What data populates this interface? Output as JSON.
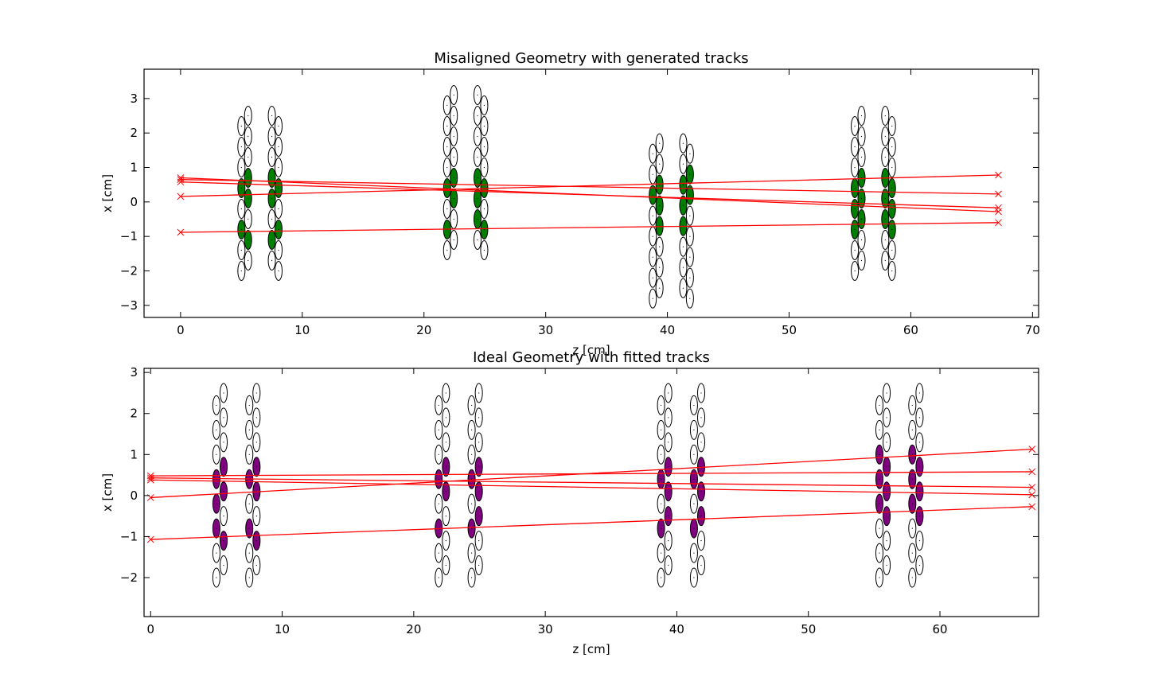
{
  "chart_data": [
    {
      "type": "scatter",
      "title": "Misaligned Geometry with generated tracks",
      "xlabel": "z [cm]",
      "ylabel": "x [cm]",
      "xlim": [
        -3,
        70.5
      ],
      "ylim": [
        -3.35,
        3.85
      ],
      "xticks": [
        0,
        10,
        20,
        30,
        40,
        50,
        60,
        70
      ],
      "yticks": [
        -3,
        -2,
        -1,
        0,
        1,
        2,
        3
      ],
      "grid": false,
      "colors": {
        "hit_module": "#008000",
        "empty_module": "#ffffff",
        "track": "#ff0000"
      },
      "layers": [
        {
          "z_front": 5.0,
          "z_back": 5.55,
          "x": [
            -2.0,
            -1.4,
            -0.8,
            -0.2,
            0.4,
            1.0,
            1.6,
            2.2
          ],
          "offset": 0.3
        },
        {
          "z_front": 7.5,
          "z_back": 8.05,
          "x": [
            -1.7,
            -1.1,
            -0.5,
            0.1,
            0.7,
            1.3,
            1.9,
            2.5
          ],
          "offset": -0.3
        },
        {
          "z_front": 21.9,
          "z_back": 22.45,
          "x": [
            -1.4,
            -0.8,
            -0.2,
            0.4,
            1.0,
            1.6,
            2.2,
            2.8
          ],
          "offset": 0.3
        },
        {
          "z_front": 24.4,
          "z_back": 24.95,
          "x": [
            -1.1,
            -0.5,
            0.1,
            0.7,
            1.3,
            1.9,
            2.5,
            3.1
          ],
          "offset": -0.3
        },
        {
          "z_front": 38.8,
          "z_back": 39.35,
          "x": [
            -2.8,
            -2.2,
            -1.6,
            -1.0,
            -0.4,
            0.2,
            0.8,
            1.4
          ],
          "offset": 0.3
        },
        {
          "z_front": 41.3,
          "z_back": 41.85,
          "x": [
            -2.5,
            -1.9,
            -1.3,
            -0.7,
            -0.1,
            0.5,
            1.1,
            1.7
          ],
          "offset": -0.3
        },
        {
          "z_front": 55.4,
          "z_back": 55.95,
          "x": [
            -2.0,
            -1.4,
            -0.8,
            -0.2,
            0.4,
            1.0,
            1.6,
            2.2
          ],
          "offset": 0.3
        },
        {
          "z_front": 57.9,
          "z_back": 58.45,
          "x": [
            -1.7,
            -1.1,
            -0.5,
            0.1,
            0.7,
            1.3,
            1.9,
            2.5
          ],
          "offset": -0.3
        }
      ],
      "tracks": [
        {
          "x0": 0.7,
          "x1": -0.28
        },
        {
          "x0": 0.65,
          "x1": 0.23
        },
        {
          "x0": 0.58,
          "x1": -0.17
        },
        {
          "x0": 0.16,
          "x1": 0.78
        },
        {
          "x0": -0.88,
          "x1": -0.6
        }
      ],
      "track_z": [
        0,
        67.2
      ]
    },
    {
      "type": "scatter",
      "title": "Ideal Geometry with fitted tracks",
      "xlabel": "z [cm]",
      "ylabel": "x [cm]",
      "xlim": [
        -0.5,
        67.5
      ],
      "ylim": [
        -2.95,
        3.1
      ],
      "xticks": [
        0,
        10,
        20,
        30,
        40,
        50,
        60
      ],
      "yticks": [
        -2,
        -1,
        0,
        1,
        2,
        3
      ],
      "grid": false,
      "colors": {
        "hit_module": "#800080",
        "empty_module": "#ffffff",
        "track": "#ff0000"
      },
      "layers": [
        {
          "z_front": 5.0,
          "z_back": 5.55,
          "x": [
            -2.0,
            -1.4,
            -0.8,
            -0.2,
            0.4,
            1.0,
            1.6,
            2.2
          ],
          "offset": 0.3
        },
        {
          "z_front": 7.5,
          "z_back": 8.05,
          "x": [
            -2.0,
            -1.4,
            -0.8,
            -0.2,
            0.4,
            1.0,
            1.6,
            2.2
          ],
          "offset": 0.3
        },
        {
          "z_front": 21.9,
          "z_back": 22.45,
          "x": [
            -2.0,
            -1.4,
            -0.8,
            -0.2,
            0.4,
            1.0,
            1.6,
            2.2
          ],
          "offset": 0.3
        },
        {
          "z_front": 24.4,
          "z_back": 24.95,
          "x": [
            -2.0,
            -1.4,
            -0.8,
            -0.2,
            0.4,
            1.0,
            1.6,
            2.2
          ],
          "offset": 0.3
        },
        {
          "z_front": 38.8,
          "z_back": 39.35,
          "x": [
            -2.0,
            -1.4,
            -0.8,
            -0.2,
            0.4,
            1.0,
            1.6,
            2.2
          ],
          "offset": 0.3
        },
        {
          "z_front": 41.3,
          "z_back": 41.85,
          "x": [
            -2.0,
            -1.4,
            -0.8,
            -0.2,
            0.4,
            1.0,
            1.6,
            2.2
          ],
          "offset": 0.3
        },
        {
          "z_front": 55.4,
          "z_back": 55.95,
          "x": [
            -2.0,
            -1.4,
            -0.8,
            -0.2,
            0.4,
            1.0,
            1.6,
            2.2
          ],
          "offset": 0.3
        },
        {
          "z_front": 57.9,
          "z_back": 58.45,
          "x": [
            -2.0,
            -1.4,
            -0.8,
            -0.2,
            0.4,
            1.0,
            1.6,
            2.2
          ],
          "offset": 0.3
        }
      ],
      "tracks": [
        {
          "x0": 0.48,
          "x1": 0.58
        },
        {
          "x0": 0.43,
          "x1": 0.2
        },
        {
          "x0": 0.38,
          "x1": 0.02
        },
        {
          "x0": -0.05,
          "x1": 1.13
        },
        {
          "x0": -1.07,
          "x1": -0.27
        }
      ],
      "track_z": [
        0,
        67.0
      ]
    }
  ]
}
